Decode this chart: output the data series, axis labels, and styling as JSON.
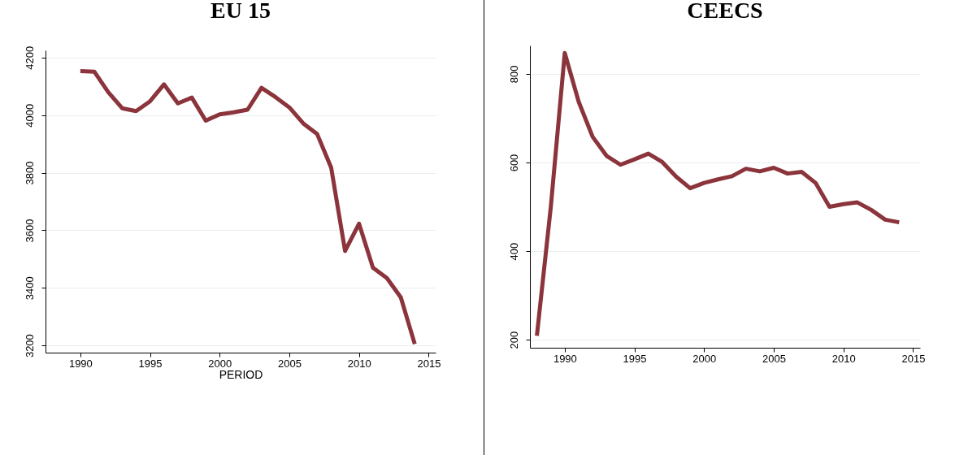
{
  "chart_data": [
    {
      "type": "line",
      "title": "EU 15",
      "xlabel": "PERIOD",
      "x": [
        1990,
        1991,
        1992,
        1993,
        1994,
        1995,
        1996,
        1997,
        1998,
        1999,
        2000,
        2001,
        2002,
        2003,
        2004,
        2005,
        2006,
        2007,
        2008,
        2009,
        2010,
        2011,
        2012,
        2013,
        2014
      ],
      "series": [
        {
          "color": "#8b343b",
          "values": [
            4153,
            4151,
            4080,
            4024,
            4014,
            4048,
            4107,
            4041,
            4061,
            3981,
            4003,
            4010,
            4019,
            4095,
            4063,
            4027,
            3971,
            3934,
            3818,
            3528,
            3623,
            3470,
            3434,
            3367,
            3205
          ]
        }
      ],
      "xlim": [
        1987.5,
        2015.5
      ],
      "xticks": [
        1990,
        1995,
        2000,
        2005,
        2010,
        2015
      ],
      "ylim": [
        3175,
        4225
      ],
      "yticks": [
        3200,
        3400,
        3600,
        3800,
        4000,
        4200
      ],
      "grid": "y"
    },
    {
      "type": "line",
      "title": "CEECS",
      "x": [
        1988,
        1989,
        1990,
        1991,
        1992,
        1993,
        1994,
        1995,
        1996,
        1997,
        1998,
        1999,
        2000,
        2001,
        2002,
        2003,
        2004,
        2005,
        2006,
        2007,
        2008,
        2009,
        2010,
        2011,
        2012,
        2013,
        2014
      ],
      "series": [
        {
          "color": "#8b343b",
          "values": [
            209,
            500,
            847,
            737,
            658,
            615,
            595,
            607,
            620,
            601,
            568,
            542,
            554,
            562,
            569,
            586,
            580,
            588,
            575,
            579,
            554,
            500,
            506,
            510,
            493,
            471,
            465
          ]
        }
      ],
      "xlim": [
        1987.5,
        2015.5
      ],
      "xticks": [
        1990,
        1995,
        2000,
        2005,
        2010,
        2015
      ],
      "ylim": [
        182,
        864
      ],
      "yticks": [
        200,
        400,
        600,
        800
      ],
      "grid": "y"
    }
  ]
}
